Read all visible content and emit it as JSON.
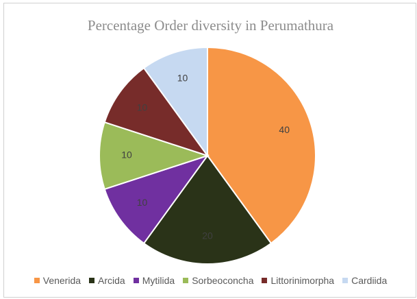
{
  "chart_data": {
    "type": "pie",
    "title": "Percentage Order diversity in Perumathura",
    "categories": [
      "Venerida",
      "Arcida",
      "Mytilida",
      "Sorbeoconcha",
      "Littorinimorpha",
      "Cardiida"
    ],
    "values": [
      40,
      20,
      10,
      10,
      10,
      10
    ],
    "data_labels": [
      "40",
      "20",
      "10",
      "10",
      "10",
      "10"
    ],
    "colors": [
      "#f79646",
      "#2a3318",
      "#7030a0",
      "#9bbb59",
      "#772c2a",
      "#c6d9f1"
    ],
    "legend_position": "bottom",
    "start_angle": "12 o'clock",
    "direction": "clockwise"
  }
}
